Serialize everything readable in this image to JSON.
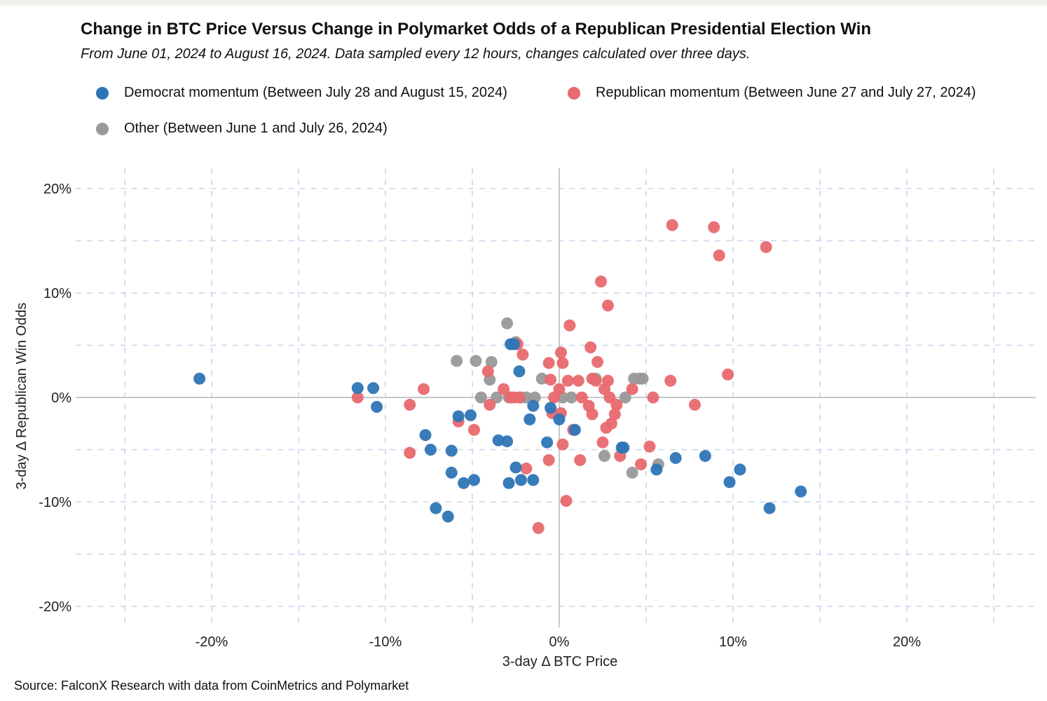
{
  "colors": {
    "democrat": "#2e75b6",
    "republican": "#e8696f",
    "other": "#999999",
    "grid": "#c9d6ec",
    "zero": "#c8c8c8"
  },
  "chart_data": {
    "type": "scatter",
    "title": "Change in BTC Price Versus Change in Polymarket Odds of a Republican Presidential Election Win",
    "subtitle": "From June 01, 2024 to August 16, 2024. Data sampled every 12 hours, changes calculated over three days.",
    "xlabel": "3-day Δ BTC Price",
    "ylabel": "3-day Δ Republican Win Odds",
    "xlim": [
      -0.275,
      0.275
    ],
    "ylim": [
      -0.22,
      0.22
    ],
    "x_ticks": [
      -0.2,
      -0.1,
      0,
      0.1,
      0.2
    ],
    "x_tick_labels": [
      "-20%",
      "-10%",
      "0%",
      "10%",
      "20%"
    ],
    "y_ticks": [
      0.2,
      0.1,
      0,
      -0.1,
      -0.2
    ],
    "y_tick_labels": [
      "20%",
      "10%",
      "0%",
      "-10%",
      "-20%"
    ],
    "grid": true,
    "legend_position": "top-left",
    "source": "Source: FalconX Research with data from CoinMetrics and Polymarket",
    "series": [
      {
        "name": "Democrat momentum (Between July 28 and August 15, 2024)",
        "color_key": "democrat",
        "points": [
          [
            -0.207,
            0.018
          ],
          [
            -0.116,
            0.009
          ],
          [
            -0.107,
            0.009
          ],
          [
            -0.105,
            -0.009
          ],
          [
            -0.077,
            -0.036
          ],
          [
            -0.074,
            -0.05
          ],
          [
            -0.071,
            -0.106
          ],
          [
            -0.064,
            -0.114
          ],
          [
            -0.062,
            -0.051
          ],
          [
            -0.062,
            -0.072
          ],
          [
            -0.058,
            -0.018
          ],
          [
            -0.055,
            -0.082
          ],
          [
            -0.051,
            -0.017
          ],
          [
            -0.049,
            -0.079
          ],
          [
            -0.035,
            -0.041
          ],
          [
            -0.03,
            -0.042
          ],
          [
            -0.029,
            -0.082
          ],
          [
            -0.028,
            0.051
          ],
          [
            -0.026,
            0.051
          ],
          [
            -0.025,
            -0.067
          ],
          [
            -0.023,
            0.025
          ],
          [
            -0.022,
            -0.079
          ],
          [
            -0.017,
            -0.021
          ],
          [
            -0.015,
            -0.008
          ],
          [
            -0.015,
            -0.079
          ],
          [
            -0.007,
            -0.043
          ],
          [
            -0.005,
            -0.01
          ],
          [
            0.0,
            -0.021
          ],
          [
            0.009,
            -0.031
          ],
          [
            0.036,
            -0.048
          ],
          [
            0.037,
            -0.048
          ],
          [
            0.056,
            -0.069
          ],
          [
            0.067,
            -0.058
          ],
          [
            0.084,
            -0.056
          ],
          [
            0.098,
            -0.081
          ],
          [
            0.104,
            -0.069
          ],
          [
            0.121,
            -0.106
          ],
          [
            0.139,
            -0.09
          ]
        ]
      },
      {
        "name": "Republican momentum (Between June 27 and July 27, 2024)",
        "color_key": "republican",
        "points": [
          [
            -0.116,
            0.0
          ],
          [
            -0.086,
            -0.053
          ],
          [
            -0.086,
            -0.007
          ],
          [
            -0.078,
            0.008
          ],
          [
            -0.058,
            -0.023
          ],
          [
            -0.049,
            -0.031
          ],
          [
            -0.041,
            0.025
          ],
          [
            -0.04,
            -0.007
          ],
          [
            -0.032,
            0.008
          ],
          [
            -0.028,
            0.0
          ],
          [
            -0.026,
            0.0
          ],
          [
            -0.024,
            0.051
          ],
          [
            -0.023,
            0.0
          ],
          [
            -0.021,
            0.041
          ],
          [
            -0.019,
            -0.068
          ],
          [
            -0.012,
            -0.125
          ],
          [
            -0.006,
            0.033
          ],
          [
            -0.006,
            -0.06
          ],
          [
            -0.005,
            0.017
          ],
          [
            -0.004,
            -0.015
          ],
          [
            -0.003,
            0.0
          ],
          [
            0.0,
            0.008
          ],
          [
            0.001,
            0.043
          ],
          [
            0.001,
            -0.015
          ],
          [
            0.002,
            0.033
          ],
          [
            0.002,
            -0.045
          ],
          [
            0.004,
            -0.099
          ],
          [
            0.005,
            0.016
          ],
          [
            0.006,
            0.069
          ],
          [
            0.008,
            -0.031
          ],
          [
            0.011,
            0.016
          ],
          [
            0.012,
            -0.06
          ],
          [
            0.013,
            0.0
          ],
          [
            0.017,
            -0.008
          ],
          [
            0.018,
            0.048
          ],
          [
            0.019,
            -0.016
          ],
          [
            0.019,
            0.018
          ],
          [
            0.021,
            0.016
          ],
          [
            0.022,
            0.034
          ],
          [
            0.024,
            0.111
          ],
          [
            0.025,
            -0.043
          ],
          [
            0.026,
            0.008
          ],
          [
            0.027,
            -0.029
          ],
          [
            0.028,
            0.088
          ],
          [
            0.028,
            0.016
          ],
          [
            0.029,
            0.0
          ],
          [
            0.03,
            -0.025
          ],
          [
            0.032,
            -0.016
          ],
          [
            0.033,
            -0.007
          ],
          [
            0.035,
            -0.056
          ],
          [
            0.042,
            0.008
          ],
          [
            0.047,
            -0.064
          ],
          [
            0.052,
            -0.047
          ],
          [
            0.054,
            0.0
          ],
          [
            0.064,
            0.016
          ],
          [
            0.065,
            0.165
          ],
          [
            0.078,
            -0.007
          ],
          [
            0.089,
            0.163
          ],
          [
            0.092,
            0.136
          ],
          [
            0.097,
            0.022
          ],
          [
            0.119,
            0.144
          ]
        ]
      },
      {
        "name": "Other (Between June 1 and July 26, 2024)",
        "color_key": "other",
        "points": [
          [
            -0.059,
            0.035
          ],
          [
            -0.048,
            0.035
          ],
          [
            -0.045,
            0.0
          ],
          [
            -0.04,
            0.017
          ],
          [
            -0.039,
            0.034
          ],
          [
            -0.036,
            0.0
          ],
          [
            -0.03,
            0.071
          ],
          [
            -0.029,
            0.0
          ],
          [
            -0.025,
            0.053
          ],
          [
            -0.022,
            0.0
          ],
          [
            -0.019,
            0.0
          ],
          [
            -0.014,
            0.0
          ],
          [
            -0.01,
            0.018
          ],
          [
            0.002,
            0.0
          ],
          [
            0.007,
            0.0
          ],
          [
            0.021,
            0.018
          ],
          [
            0.026,
            -0.056
          ],
          [
            0.038,
            0.0
          ],
          [
            0.042,
            -0.072
          ],
          [
            0.043,
            0.018
          ],
          [
            0.046,
            0.018
          ],
          [
            0.048,
            0.018
          ],
          [
            0.057,
            -0.064
          ]
        ]
      }
    ]
  }
}
